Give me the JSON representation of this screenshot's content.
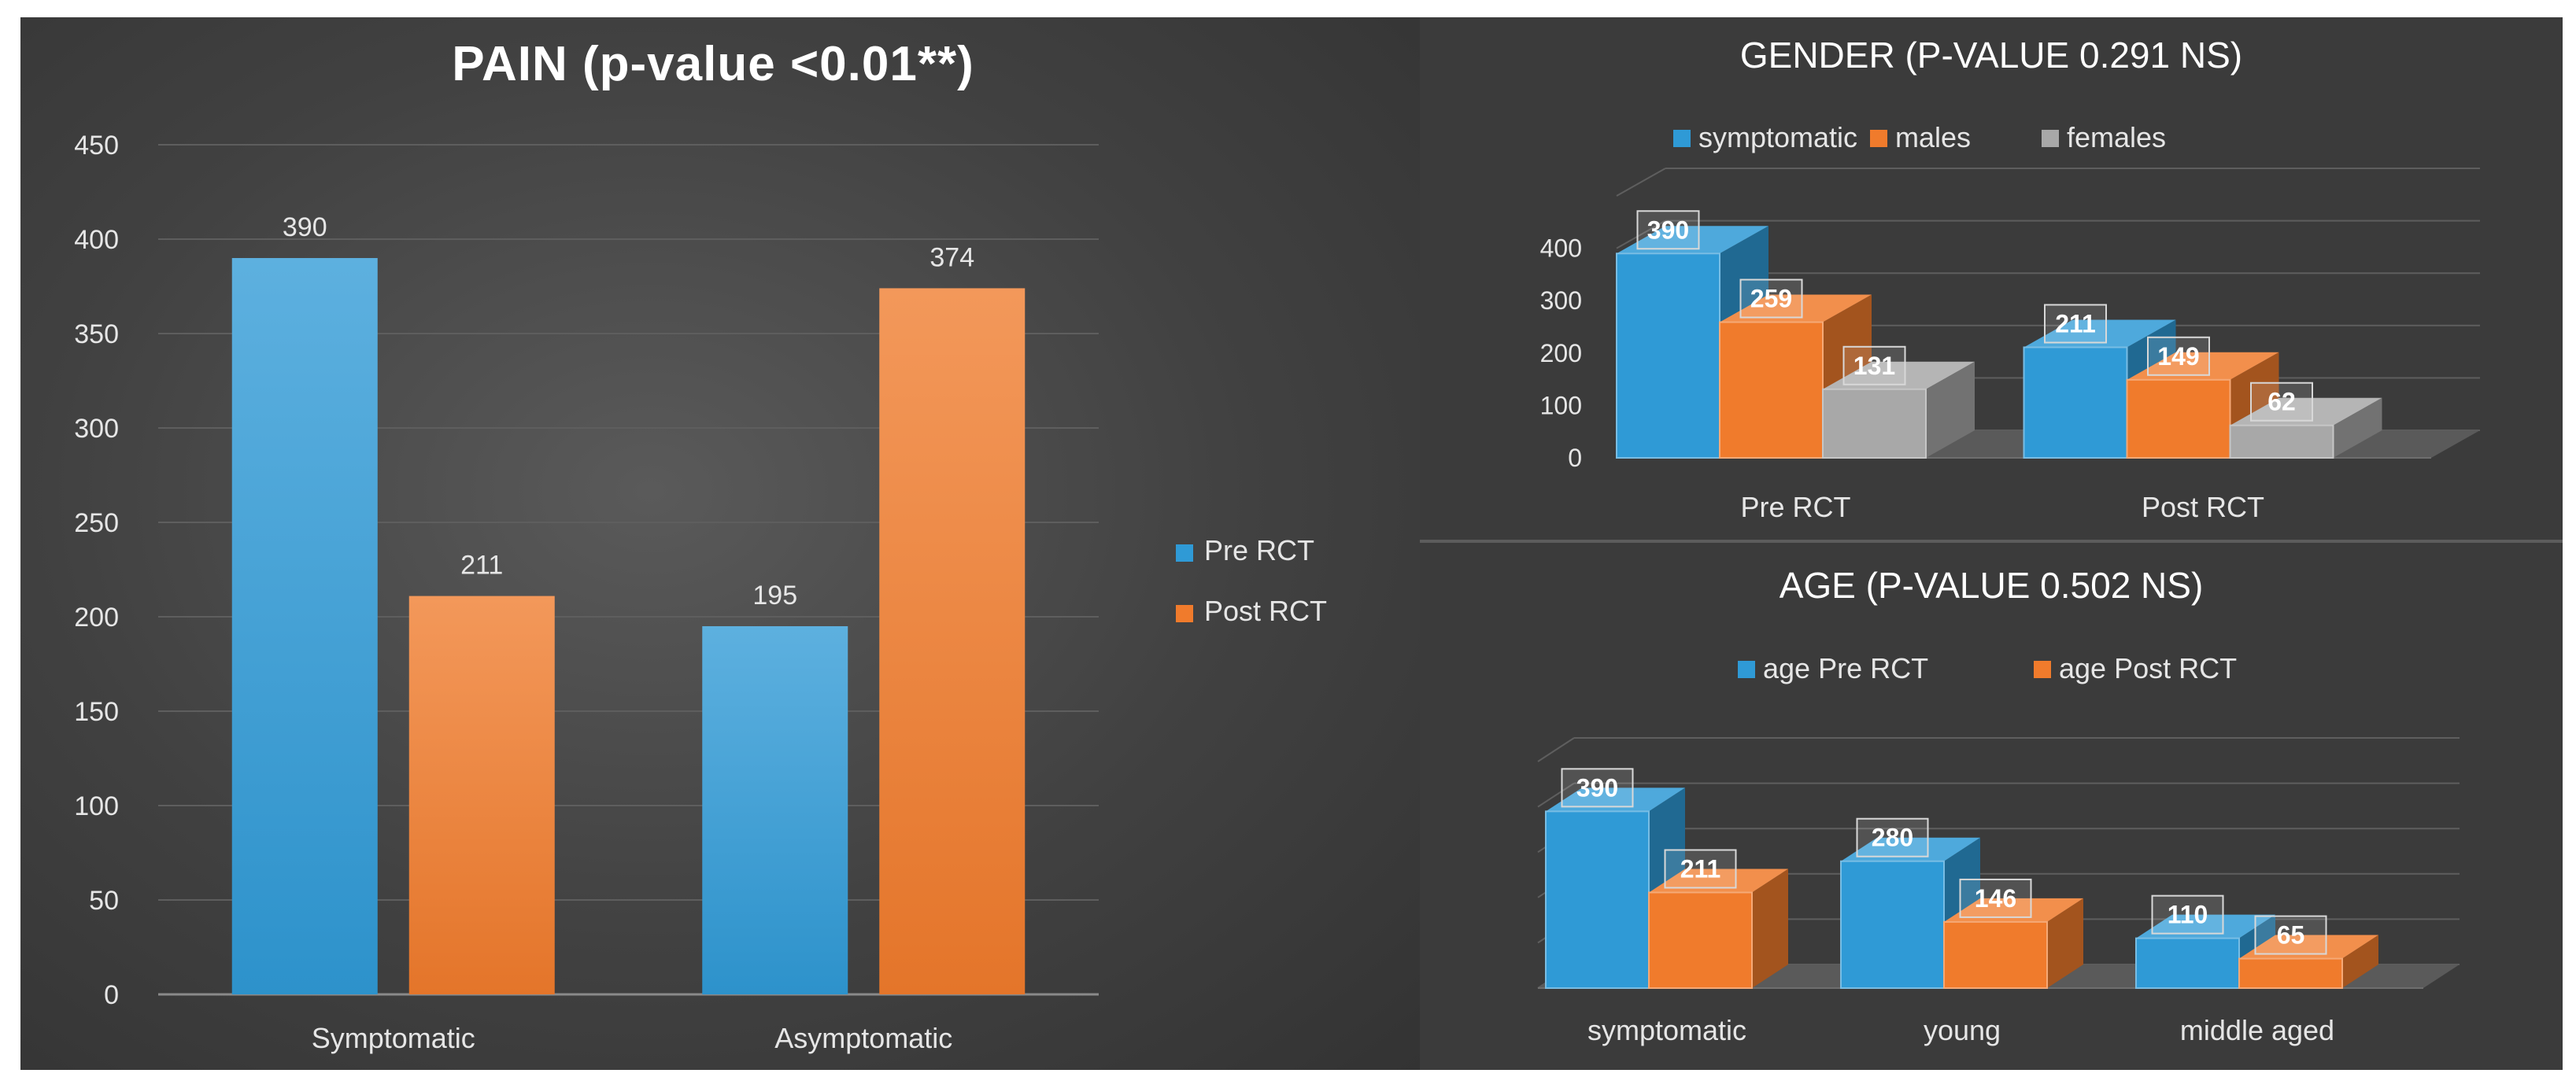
{
  "colors": {
    "blue": "#2f9ad6",
    "orange": "#f07b2c",
    "gray": "#a8a8a8",
    "text": "#e6e6e6",
    "grid": "#5e5e5e"
  },
  "chart_data": [
    {
      "type": "bar",
      "title": "PAIN (p-value <0.01**)",
      "categories": [
        "Symptomatic",
        "Asymptomatic"
      ],
      "series": [
        {
          "name": "Pre RCT",
          "values": [
            390,
            195
          ],
          "color": "#2f9ad6"
        },
        {
          "name": "Post RCT",
          "values": [
            211,
            374
          ],
          "color": "#f07b2c"
        }
      ],
      "yticks": [
        "0",
        "50",
        "100",
        "150",
        "200",
        "250",
        "300",
        "350",
        "400",
        "450"
      ],
      "ylim": [
        0,
        450
      ],
      "xlabel": "",
      "ylabel": "",
      "legend": "right",
      "grid": true
    },
    {
      "type": "bar",
      "title": "GENDER (P-VALUE 0.291 NS)",
      "categories": [
        "Pre RCT",
        "Post RCT"
      ],
      "series": [
        {
          "name": "symptomatic",
          "values": [
            390,
            211
          ],
          "color": "#2f9ad6"
        },
        {
          "name": "males",
          "values": [
            259,
            149
          ],
          "color": "#f07b2c"
        },
        {
          "name": "females",
          "values": [
            131,
            62
          ],
          "color": "#a8a8a8"
        }
      ],
      "yticks": [
        "0",
        "100",
        "200",
        "300",
        "400"
      ],
      "ylim": [
        0,
        500
      ],
      "legend": "top",
      "grid": true
    },
    {
      "type": "bar",
      "title": "AGE (P-VALUE 0.502 NS)",
      "categories": [
        "symptomatic",
        "young",
        "middle aged"
      ],
      "series": [
        {
          "name": "age Pre RCT",
          "values": [
            390,
            280,
            110
          ],
          "color": "#2f9ad6"
        },
        {
          "name": "age Post RCT",
          "values": [
            211,
            146,
            65
          ],
          "color": "#f07b2c"
        }
      ],
      "ylim": [
        0,
        500
      ],
      "legend": "top",
      "grid": true
    }
  ]
}
